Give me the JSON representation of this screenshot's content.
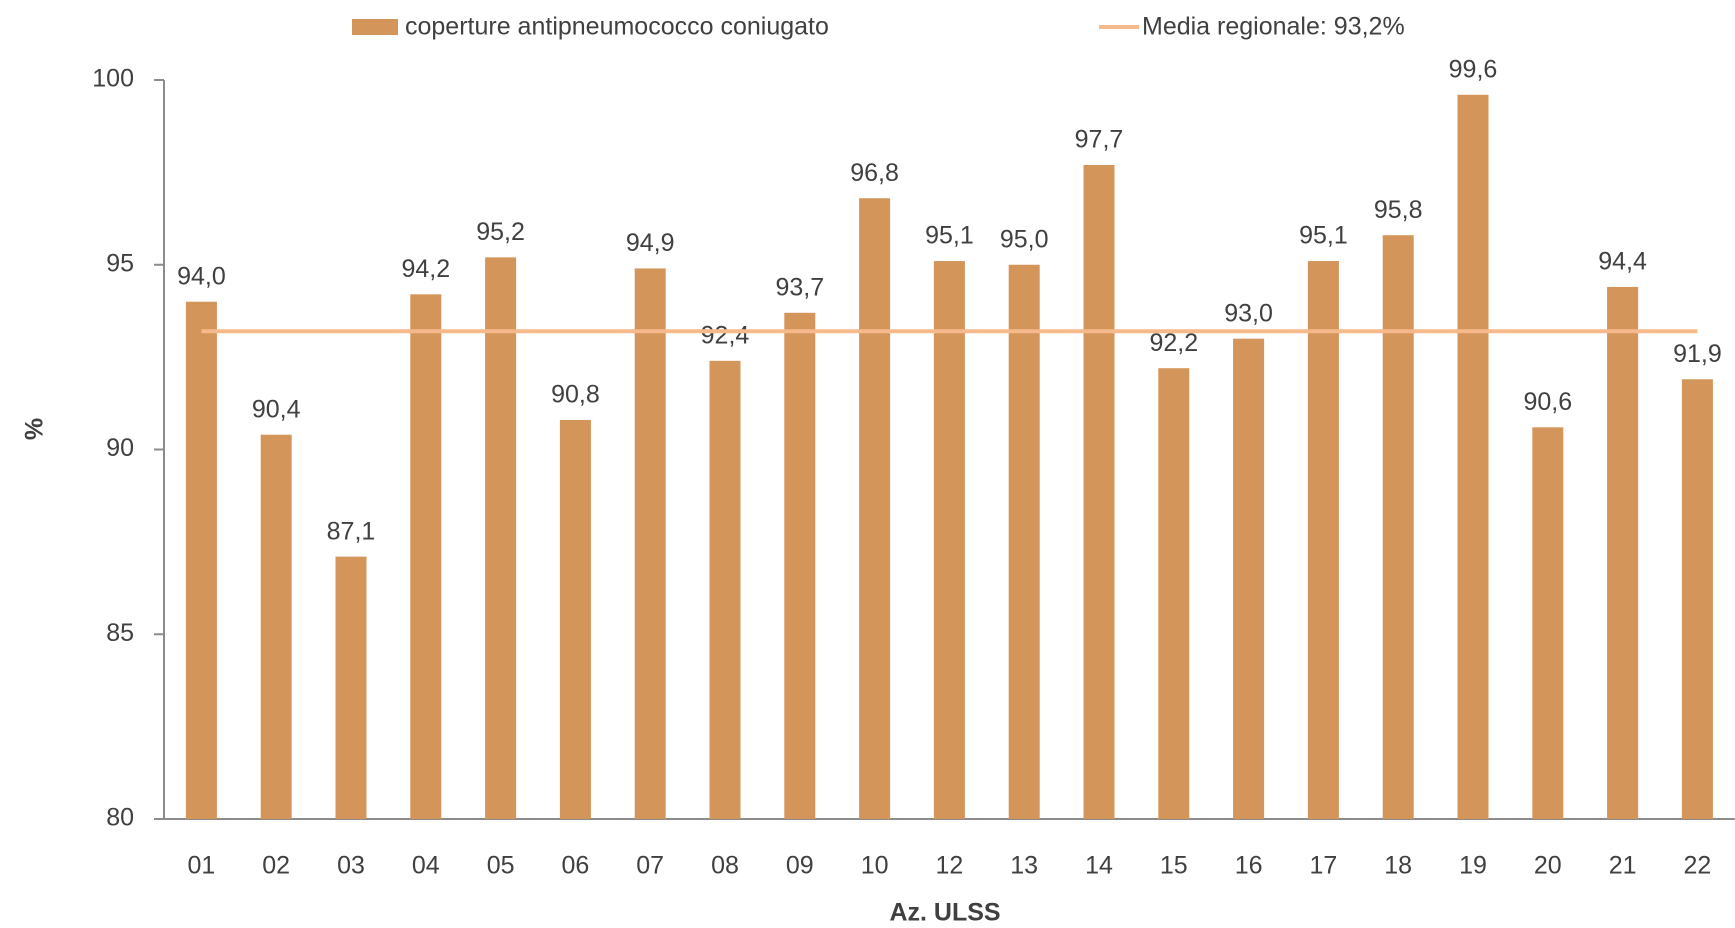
{
  "chart_data": {
    "type": "bar",
    "xlabel": "Az. ULSS",
    "ylabel": "%",
    "categories": [
      "01",
      "02",
      "03",
      "04",
      "05",
      "06",
      "07",
      "08",
      "09",
      "10",
      "12",
      "13",
      "14",
      "15",
      "16",
      "17",
      "18",
      "19",
      "20",
      "21",
      "22"
    ],
    "series": [
      {
        "name": "coperture antipneumococco coniugato",
        "color": "#d4955a",
        "values": [
          94.0,
          90.4,
          87.1,
          94.2,
          95.2,
          90.8,
          94.9,
          92.4,
          93.7,
          96.8,
          95.1,
          95.0,
          97.7,
          92.2,
          93.0,
          95.1,
          95.8,
          99.6,
          90.6,
          94.4,
          91.9
        ],
        "value_labels": [
          "94,0",
          "90,4",
          "87,1",
          "94,2",
          "95,2",
          "90,8",
          "94,9",
          "92,4",
          "93,7",
          "96,8",
          "95,1",
          "95,0",
          "97,7",
          "92,2",
          "93,0",
          "95,1",
          "95,8",
          "99,6",
          "90,6",
          "94,4",
          "91,9"
        ]
      }
    ],
    "reference_line": {
      "name": "Media regionale: 93,2%",
      "value": 93.2,
      "color": "#f5b98c"
    },
    "ylim": [
      80,
      100
    ],
    "yticks": [
      80,
      85,
      90,
      95,
      100
    ],
    "grid": false
  }
}
